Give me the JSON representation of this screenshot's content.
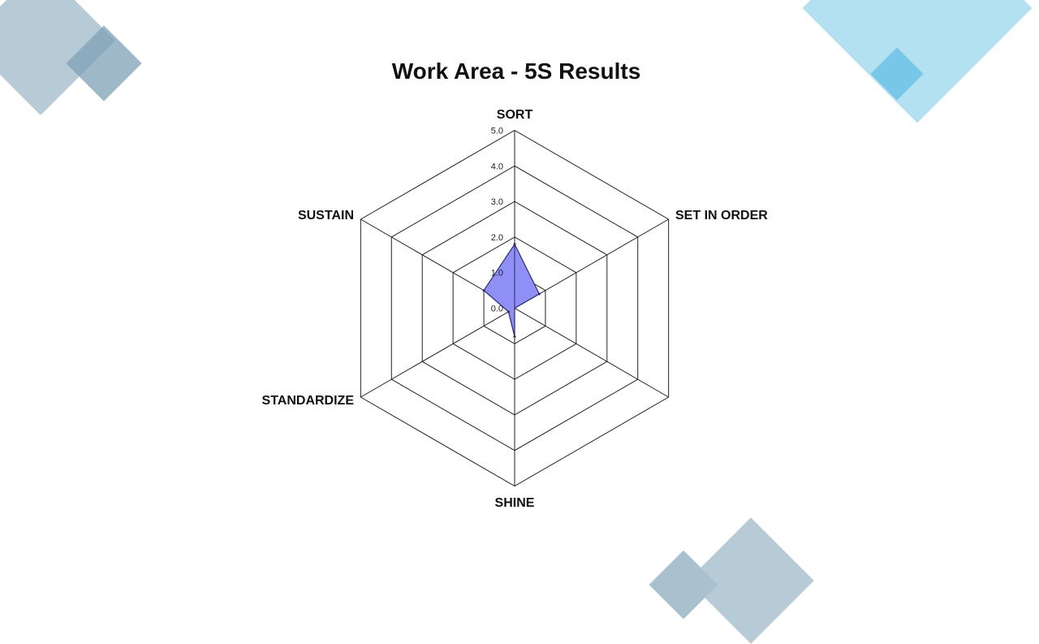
{
  "chart_data": {
    "type": "radar",
    "title": "Work Area - 5S Results",
    "categories": [
      "SORT",
      "SET IN ORDER",
      "SHINE",
      "STANDARDIZE",
      "SUSTAIN"
    ],
    "values": [
      1.8,
      0.8,
      0.8,
      0.2,
      1.0
    ],
    "rlim": [
      0,
      5
    ],
    "ticks": [
      "0.0",
      "1.0",
      "2.0",
      "3.0",
      "4.0",
      "5.0"
    ],
    "grid_sides": 6,
    "grid": true,
    "legend": "none",
    "colors": {
      "fill": "#8f8ff5",
      "stroke": "#2a2a6a",
      "grid": "#222222"
    }
  },
  "decor_colors": {
    "gray_blue": "#a9c0cf",
    "light_blue": "#a8dcf0"
  }
}
